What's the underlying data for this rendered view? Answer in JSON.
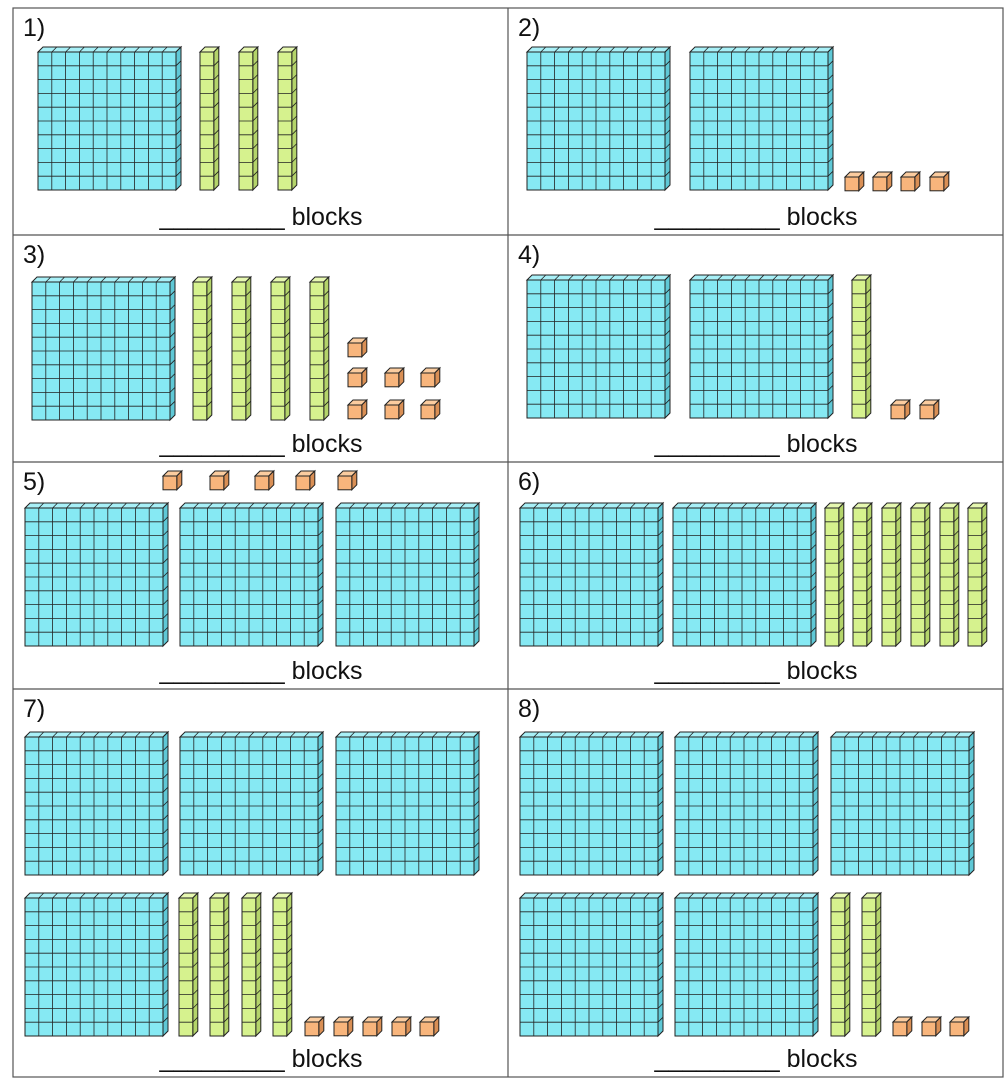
{
  "problems": [
    {
      "label": "1)",
      "answer": "_________ blocks"
    },
    {
      "label": "2)",
      "answer": "_________ blocks"
    },
    {
      "label": "3)",
      "answer": "_________ blocks"
    },
    {
      "label": "4)",
      "answer": "_________ blocks"
    },
    {
      "label": "5)",
      "answer": "_________ blocks"
    },
    {
      "label": "6)",
      "answer": "_________ blocks"
    },
    {
      "label": "7)",
      "answer": "_________ blocks"
    },
    {
      "label": "8)",
      "answer": "_________ blocks"
    }
  ]
}
